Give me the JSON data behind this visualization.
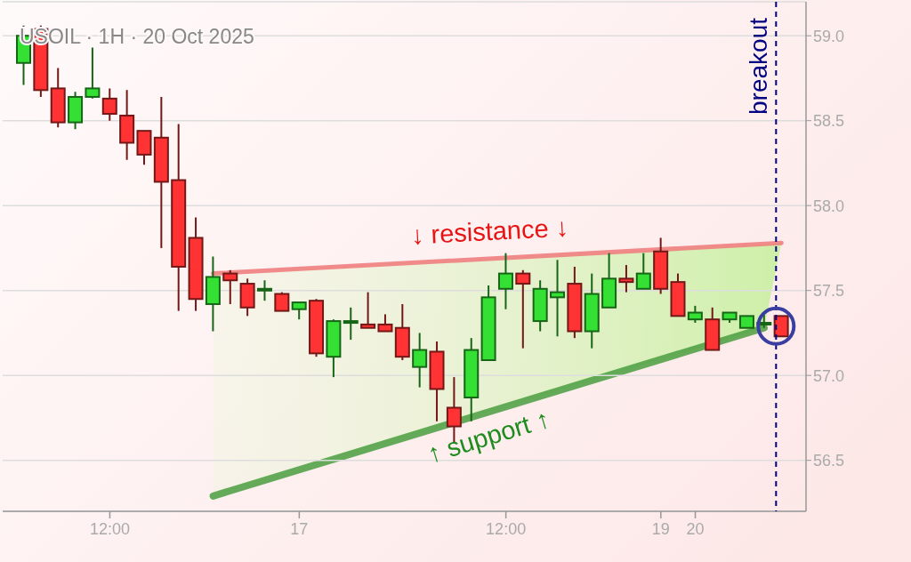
{
  "chart_data": {
    "type": "candlestick",
    "title": "USOIL · 1H · 20 Oct 2025",
    "categories": [
      null,
      null,
      null,
      null,
      null,
      "12:00",
      null,
      null,
      null,
      null,
      null,
      null,
      null,
      null,
      null,
      null,
      "17",
      null,
      null,
      null,
      null,
      null,
      null,
      null,
      null,
      null,
      null,
      null,
      "12:00",
      null,
      null,
      null,
      null,
      null,
      null,
      null,
      null,
      "19",
      null,
      "20",
      null,
      null,
      null,
      null,
      null
    ],
    "ohlc": [
      [
        58.84,
        59.06,
        58.71,
        59.0
      ],
      [
        59.04,
        59.06,
        58.64,
        58.68
      ],
      [
        58.69,
        58.81,
        58.46,
        58.49
      ],
      [
        58.49,
        58.67,
        58.45,
        58.64
      ],
      [
        58.64,
        58.93,
        58.63,
        58.69
      ],
      [
        58.63,
        58.69,
        58.5,
        58.54
      ],
      [
        58.53,
        58.68,
        58.27,
        58.37
      ],
      [
        58.44,
        58.44,
        58.24,
        58.3
      ],
      [
        58.4,
        58.64,
        57.75,
        58.14
      ],
      [
        58.15,
        58.48,
        57.38,
        57.64
      ],
      [
        57.81,
        57.93,
        57.38,
        57.45
      ],
      [
        57.42,
        57.7,
        57.26,
        57.58
      ],
      [
        57.6,
        57.62,
        57.42,
        57.56
      ],
      [
        57.54,
        57.57,
        57.35,
        57.4
      ],
      [
        57.5,
        57.56,
        57.44,
        57.51
      ],
      [
        57.48,
        57.49,
        57.38,
        57.38
      ],
      [
        57.39,
        57.43,
        57.33,
        57.43
      ],
      [
        57.44,
        57.45,
        57.11,
        57.13
      ],
      [
        57.11,
        57.33,
        56.99,
        57.32
      ],
      [
        57.31,
        57.4,
        57.21,
        57.32
      ],
      [
        57.3,
        57.49,
        57.28,
        57.28
      ],
      [
        57.3,
        57.36,
        57.26,
        57.26
      ],
      [
        57.28,
        57.42,
        57.09,
        57.11
      ],
      [
        57.05,
        57.25,
        56.93,
        57.15
      ],
      [
        57.14,
        57.2,
        56.73,
        56.92
      ],
      [
        56.81,
        56.99,
        56.6,
        56.7
      ],
      [
        56.87,
        57.22,
        56.73,
        57.15
      ],
      [
        57.09,
        57.53,
        57.09,
        57.46
      ],
      [
        57.51,
        57.72,
        57.39,
        57.6
      ],
      [
        57.6,
        57.62,
        57.16,
        57.54
      ],
      [
        57.32,
        57.56,
        57.26,
        57.51
      ],
      [
        57.46,
        57.68,
        57.23,
        57.49
      ],
      [
        57.54,
        57.64,
        57.22,
        57.26
      ],
      [
        57.26,
        57.6,
        57.16,
        57.48
      ],
      [
        57.4,
        57.72,
        57.4,
        57.57
      ],
      [
        57.57,
        57.65,
        57.49,
        57.55
      ],
      [
        57.51,
        57.72,
        57.51,
        57.6
      ],
      [
        57.73,
        57.81,
        57.48,
        57.51
      ],
      [
        57.55,
        57.6,
        57.35,
        57.35
      ],
      [
        57.33,
        57.41,
        57.31,
        57.37
      ],
      [
        57.33,
        57.4,
        57.15,
        57.15
      ],
      [
        57.33,
        57.37,
        57.31,
        57.37
      ],
      [
        57.28,
        57.35,
        57.28,
        57.35
      ],
      [
        57.3,
        57.36,
        57.28,
        57.31
      ],
      [
        57.35,
        57.35,
        57.23,
        57.23
      ]
    ],
    "colors": [
      "#33e033",
      "#ff3333",
      "#ff3333",
      "#33e033",
      "#33e033",
      "#ff3333",
      "#ff3333",
      "#ff3333",
      "#ff3333",
      "#ff3333",
      "#ff3333",
      "#33e033",
      "#ff3333",
      "#ff3333",
      "#33e033",
      "#ff3333",
      "#33e033",
      "#ff3333",
      "#33e033",
      "#33e033",
      "#ff3333",
      "#ff3333",
      "#ff3333",
      "#33e033",
      "#ff3333",
      "#ff3333",
      "#33e033",
      "#33e033",
      "#33e033",
      "#ff3333",
      "#33e033",
      "#33e033",
      "#ff3333",
      "#33e033",
      "#33e033",
      "#ff3333",
      "#33e033",
      "#ff3333",
      "#ff3333",
      "#33e033",
      "#ff3333",
      "#33e033",
      "#33e033",
      "#33e033",
      "#ff3333"
    ],
    "series": [
      {
        "type": "line",
        "color": "#f08080",
        "values": [
          null,
          null,
          null,
          null,
          null,
          null,
          null,
          null,
          null,
          null,
          null,
          57.6,
          null,
          null,
          null,
          null,
          null,
          null,
          null,
          null,
          null,
          null,
          null,
          null,
          null,
          null,
          null,
          null,
          null,
          null,
          null,
          null,
          null,
          null,
          null,
          null,
          null,
          null,
          null,
          null,
          null,
          null,
          null,
          null,
          57.78
        ]
      },
      {
        "type": "line",
        "color": "#4a9e3f",
        "values": [
          null,
          null,
          null,
          null,
          null,
          null,
          null,
          null,
          null,
          null,
          null,
          56.29,
          null,
          null,
          null,
          null,
          null,
          null,
          null,
          null,
          null,
          null,
          null,
          null,
          null,
          null,
          null,
          null,
          null,
          null,
          null,
          null,
          null,
          null,
          null,
          null,
          null,
          null,
          null,
          null,
          null,
          null,
          null,
          57.28,
          null
        ]
      }
    ],
    "ylim": [
      56.2,
      59.2
    ],
    "yticks": [
      {
        "value": 56.5,
        "label": "56.5"
      },
      {
        "value": 57,
        "label": "57.0"
      },
      {
        "value": 57.5,
        "label": "57.5"
      },
      {
        "value": 58,
        "label": "58.0"
      },
      {
        "value": 58.5,
        "label": "58.5"
      },
      {
        "value": 59,
        "label": "59.0"
      }
    ],
    "grid": "y",
    "annotations": [
      "↓ resistance ↓",
      "↑ support ↑",
      "breakout"
    ]
  }
}
